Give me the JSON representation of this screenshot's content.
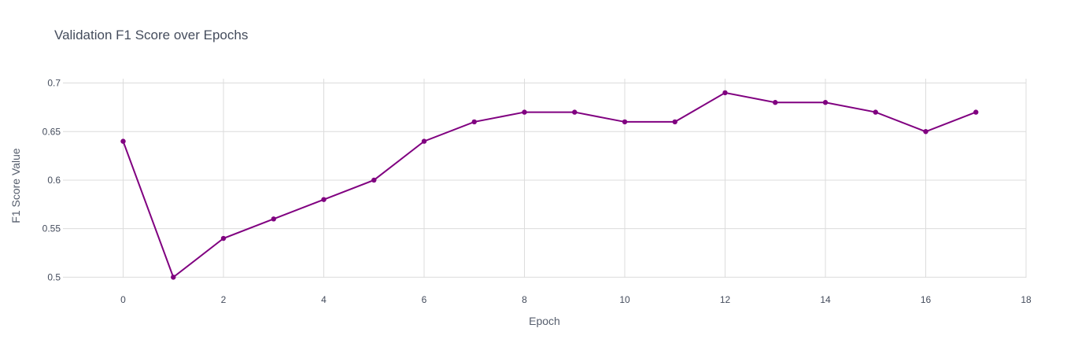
{
  "chart_data": {
    "type": "line",
    "title": "Validation F1 Score over Epochs",
    "xlabel": "Epoch",
    "ylabel": "F1 Score Value",
    "xlim": [
      -1.2,
      18
    ],
    "ylim": [
      0.4995,
      0.7045
    ],
    "x_ticks": [
      0,
      2,
      4,
      6,
      8,
      10,
      12,
      14,
      16,
      18
    ],
    "x_tick_labels": [
      "0",
      "2",
      "4",
      "6",
      "8",
      "10",
      "12",
      "14",
      "16",
      "18"
    ],
    "y_ticks": [
      0.5,
      0.55,
      0.6,
      0.65,
      0.7
    ],
    "y_tick_labels": [
      "0.5",
      "0.55",
      "0.6",
      "0.65",
      "0.7"
    ],
    "grid": true,
    "series": [
      {
        "color": "#800080",
        "x": [
          0,
          1,
          2,
          3,
          4,
          5,
          6,
          7,
          8,
          9,
          10,
          11,
          12,
          13,
          14,
          15,
          16,
          17
        ],
        "y": [
          0.64,
          0.5,
          0.54,
          0.56,
          0.58,
          0.6,
          0.64,
          0.66,
          0.67,
          0.67,
          0.66,
          0.66,
          0.69,
          0.68,
          0.68,
          0.67,
          0.65,
          0.67
        ]
      }
    ]
  }
}
